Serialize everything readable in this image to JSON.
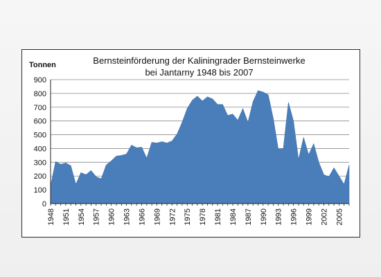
{
  "chart_data": {
    "type": "area",
    "title": "Bernsteinförderung der Kaliningrader Bernsteinwerke\nbei Jantarny  1948 bis 2007",
    "ylabel": "Tonnen",
    "xlabel": "",
    "ylim": [
      0,
      900
    ],
    "yticks": [
      "0",
      "100",
      "200",
      "300",
      "400",
      "500",
      "600",
      "700",
      "800",
      "900"
    ],
    "xticks": [
      "1948",
      "1951",
      "1954",
      "1957",
      "1960",
      "1963",
      "1966",
      "1969",
      "1972",
      "1975",
      "1978",
      "1981",
      "1984",
      "1987",
      "1990",
      "1993",
      "1996",
      "1999",
      "2002",
      "2005"
    ],
    "grid": true,
    "legend": "none",
    "color": "#4a7ebb",
    "x": [
      1948,
      1949,
      1950,
      1951,
      1952,
      1953,
      1954,
      1955,
      1956,
      1957,
      1958,
      1959,
      1960,
      1961,
      1962,
      1963,
      1964,
      1965,
      1966,
      1967,
      1968,
      1969,
      1970,
      1971,
      1972,
      1973,
      1974,
      1975,
      1976,
      1977,
      1978,
      1979,
      1980,
      1981,
      1982,
      1983,
      1984,
      1985,
      1986,
      1987,
      1988,
      1989,
      1990,
      1991,
      1992,
      1993,
      1994,
      1995,
      1996,
      1997,
      1998,
      1999,
      2000,
      2001,
      2002,
      2003,
      2004,
      2005,
      2006,
      2007
    ],
    "values": [
      130,
      305,
      285,
      295,
      275,
      140,
      225,
      210,
      240,
      195,
      180,
      280,
      310,
      345,
      350,
      360,
      425,
      405,
      410,
      330,
      445,
      440,
      450,
      440,
      455,
      505,
      590,
      690,
      750,
      780,
      745,
      775,
      760,
      720,
      720,
      640,
      650,
      605,
      690,
      590,
      740,
      820,
      810,
      790,
      620,
      395,
      400,
      735,
      600,
      320,
      480,
      355,
      435,
      300,
      210,
      195,
      260,
      200,
      140,
      280
    ]
  }
}
